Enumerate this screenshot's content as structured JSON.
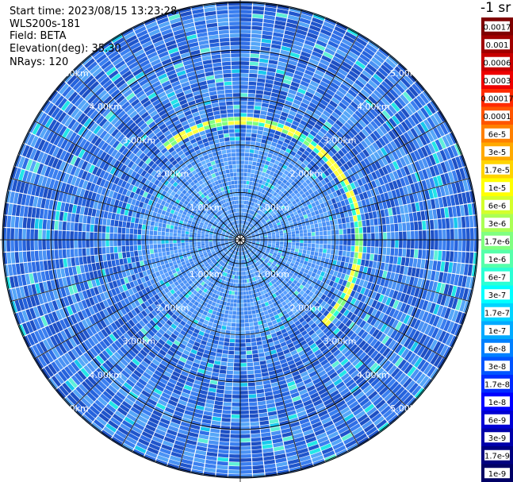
{
  "info": {
    "start_time": "Start time: 2023/08/15 13:23:28",
    "device": "WLS200s-181",
    "field": "Field: BETA",
    "elevation": "Elevation(deg): 35.30",
    "nrays": "NRays: 120"
  },
  "colorbar": {
    "title": "-1 sr",
    "labels": [
      "0.0017",
      "0.001",
      "0.0006",
      "0.0003",
      "0.00017",
      "0.0001",
      "6e-5",
      "3e-5",
      "1.7e-5",
      "1e-5",
      "6e-6",
      "3e-6",
      "1.7e-6",
      "1e-6",
      "6e-7",
      "3e-7",
      "1.7e-7",
      "1e-7",
      "6e-8",
      "3e-8",
      "1.7e-8",
      "1e-8",
      "6e-9",
      "3e-9",
      "1.7e-9",
      "1e-9"
    ],
    "colors": [
      "#7f0000",
      "#a00000",
      "#c80000",
      "#ee0000",
      "#ff2a00",
      "#ff5500",
      "#ff8000",
      "#ffaa00",
      "#ffd400",
      "#ffff00",
      "#d4ff2b",
      "#aaff55",
      "#80ff80",
      "#55ffaa",
      "#2bffd4",
      "#00ffff",
      "#00d4ff",
      "#00aaff",
      "#0080ff",
      "#0055ff",
      "#002bff",
      "#0000ff",
      "#0000d4",
      "#0000aa",
      "#000080",
      "#000066"
    ]
  },
  "chart_data": {
    "type": "polar_scan",
    "field": "BETA",
    "units": "-1 sr",
    "ring_labels_km": [
      "1.00km",
      "2.00km",
      "3.00km",
      "4.00km",
      "5.00km"
    ],
    "rings_km": [
      1,
      2,
      3,
      4,
      5
    ],
    "max_range_km": 5.0,
    "n_rays": 120,
    "dominant_level": "1e-8",
    "enhanced_ring_km": 2.5,
    "enhanced_ring_level": "1e-5"
  }
}
